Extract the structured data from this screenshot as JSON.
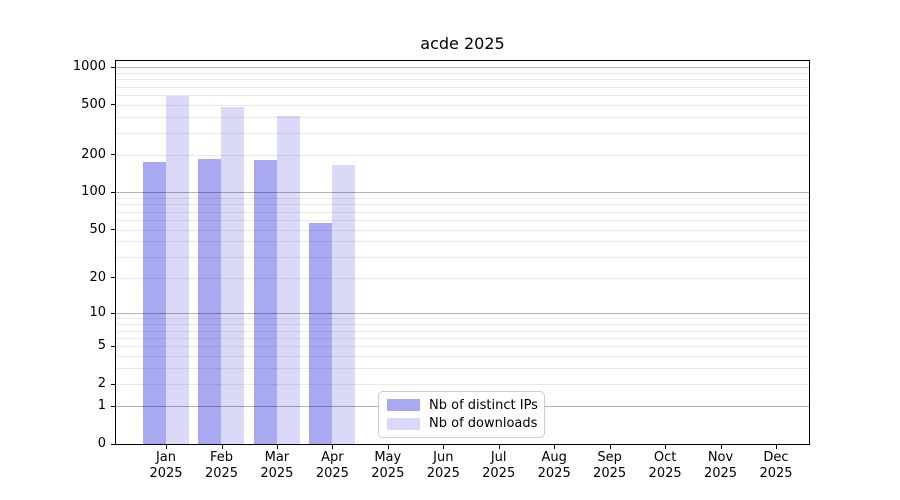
{
  "chart_data": {
    "type": "bar",
    "title": "acde 2025",
    "categories": [
      "Jan",
      "Feb",
      "Mar",
      "Apr",
      "May",
      "Jun",
      "Jul",
      "Aug",
      "Sep",
      "Oct",
      "Nov",
      "Dec"
    ],
    "xtick_year": "2025",
    "series": [
      {
        "name": "Nb of distinct IPs",
        "color": "#a9a9f2",
        "values": [
          175,
          185,
          180,
          57,
          null,
          null,
          null,
          null,
          null,
          null,
          null,
          null
        ]
      },
      {
        "name": "Nb of downloads",
        "color": "#dadaf8",
        "values": [
          585,
          480,
          410,
          165,
          null,
          null,
          null,
          null,
          null,
          null,
          null,
          null
        ]
      }
    ],
    "xlabel": "",
    "ylabel": "",
    "yscale": "log1p",
    "ylim": [
      0,
      1150
    ],
    "yticks": [
      0,
      1,
      2,
      5,
      10,
      20,
      50,
      100,
      200,
      500,
      1000
    ],
    "minor_gridlines": [
      2,
      3,
      4,
      5,
      6,
      7,
      8,
      9,
      20,
      30,
      40,
      50,
      60,
      70,
      80,
      90,
      200,
      300,
      400,
      500,
      600,
      700,
      800,
      900
    ],
    "major_gridlines": [
      1,
      10,
      100,
      1000
    ],
    "grid": "on",
    "legend_position": "lower center"
  }
}
